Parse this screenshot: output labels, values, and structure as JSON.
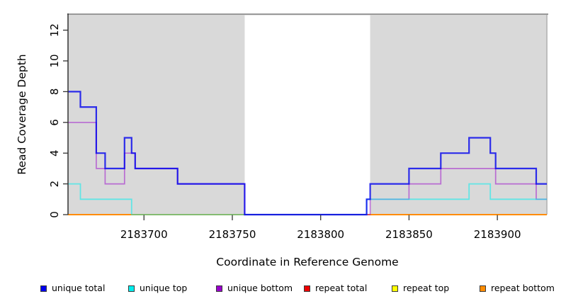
{
  "chart_data": {
    "type": "line",
    "subtype": "step-after-coverage-plot",
    "xlabel": "Coordinate in Reference Genome",
    "ylabel": "Read Coverage Depth",
    "xlim": [
      2183657,
      2183928
    ],
    "ylim": [
      0,
      13
    ],
    "grid": false,
    "x_ticks": [
      {
        "value": 2183700,
        "label": "2183700"
      },
      {
        "value": 2183750,
        "label": "2183750"
      },
      {
        "value": 2183800,
        "label": "2183800"
      },
      {
        "value": 2183850,
        "label": "2183850"
      },
      {
        "value": 2183900,
        "label": "2183900"
      }
    ],
    "y_ticks": [
      {
        "value": 0,
        "label": "0"
      },
      {
        "value": 2,
        "label": "2"
      },
      {
        "value": 4,
        "label": "4"
      },
      {
        "value": 6,
        "label": "6"
      },
      {
        "value": 8,
        "label": "8"
      },
      {
        "value": 10,
        "label": "10"
      },
      {
        "value": 12,
        "label": "12"
      }
    ],
    "panel": {
      "background": "#d9d9d9",
      "top_border_color": "#999999",
      "right_border_color": "#bdbdbd",
      "axis_color": "#333333",
      "highlight_region": {
        "x_from": 2183757,
        "x_to": 2183828,
        "color": "#ffffff"
      }
    },
    "series": [
      {
        "name": "repeat total",
        "color": "#ee0000",
        "opacity": 1,
        "width": 1.6,
        "steps": [
          [
            2183657,
            0
          ]
        ],
        "x_end": 2183928
      },
      {
        "name": "repeat top",
        "color": "#ffff00",
        "opacity": 1,
        "width": 1.6,
        "steps": [
          [
            2183657,
            0
          ]
        ],
        "x_end": 2183928
      },
      {
        "name": "repeat bottom",
        "color": "#ff8c00",
        "opacity": 1,
        "width": 2,
        "steps": [
          [
            2183657,
            0
          ]
        ],
        "x_end": 2183928
      },
      {
        "name": "unique bottom",
        "color": "#9900cc",
        "opacity": 0.5,
        "width": 1.7,
        "steps": [
          [
            2183657,
            6
          ],
          [
            2183673,
            3
          ],
          [
            2183678,
            2
          ],
          [
            2183689,
            4
          ],
          [
            2183695,
            3
          ],
          [
            2183719,
            2
          ],
          [
            2183757,
            0
          ],
          [
            2183828,
            1
          ],
          [
            2183850,
            2
          ],
          [
            2183868,
            3
          ],
          [
            2183899,
            2
          ],
          [
            2183922,
            1
          ]
        ],
        "x_end": 2183928
      },
      {
        "name": "unique top",
        "color": "#00eeee",
        "opacity": 0.55,
        "width": 1.8,
        "steps": [
          [
            2183657,
            2
          ],
          [
            2183664,
            1
          ],
          [
            2183693,
            0
          ],
          [
            2183826,
            1
          ],
          [
            2183884,
            2
          ],
          [
            2183896,
            1
          ]
        ],
        "x_end": 2183928
      },
      {
        "name": "unique total",
        "color": "#0000ee",
        "opacity": 0.8,
        "width": 2.2,
        "steps": [
          [
            2183657,
            8
          ],
          [
            2183664,
            7
          ],
          [
            2183673,
            4
          ],
          [
            2183678,
            3
          ],
          [
            2183689,
            5
          ],
          [
            2183693,
            4
          ],
          [
            2183695,
            3
          ],
          [
            2183719,
            2
          ],
          [
            2183757,
            0
          ],
          [
            2183826,
            1
          ],
          [
            2183828,
            2
          ],
          [
            2183850,
            3
          ],
          [
            2183868,
            4
          ],
          [
            2183884,
            5
          ],
          [
            2183896,
            4
          ],
          [
            2183899,
            3
          ],
          [
            2183922,
            2
          ]
        ],
        "x_end": 2183928
      }
    ],
    "legend": {
      "items": [
        {
          "label": "unique total",
          "color": "#0000ee"
        },
        {
          "label": "unique top",
          "color": "#00eeee"
        },
        {
          "label": "unique bottom",
          "color": "#9900cc"
        },
        {
          "label": "repeat total",
          "color": "#ee0000"
        },
        {
          "label": "repeat top",
          "color": "#ffff00"
        },
        {
          "label": "repeat bottom",
          "color": "#ff8c00"
        }
      ]
    }
  }
}
